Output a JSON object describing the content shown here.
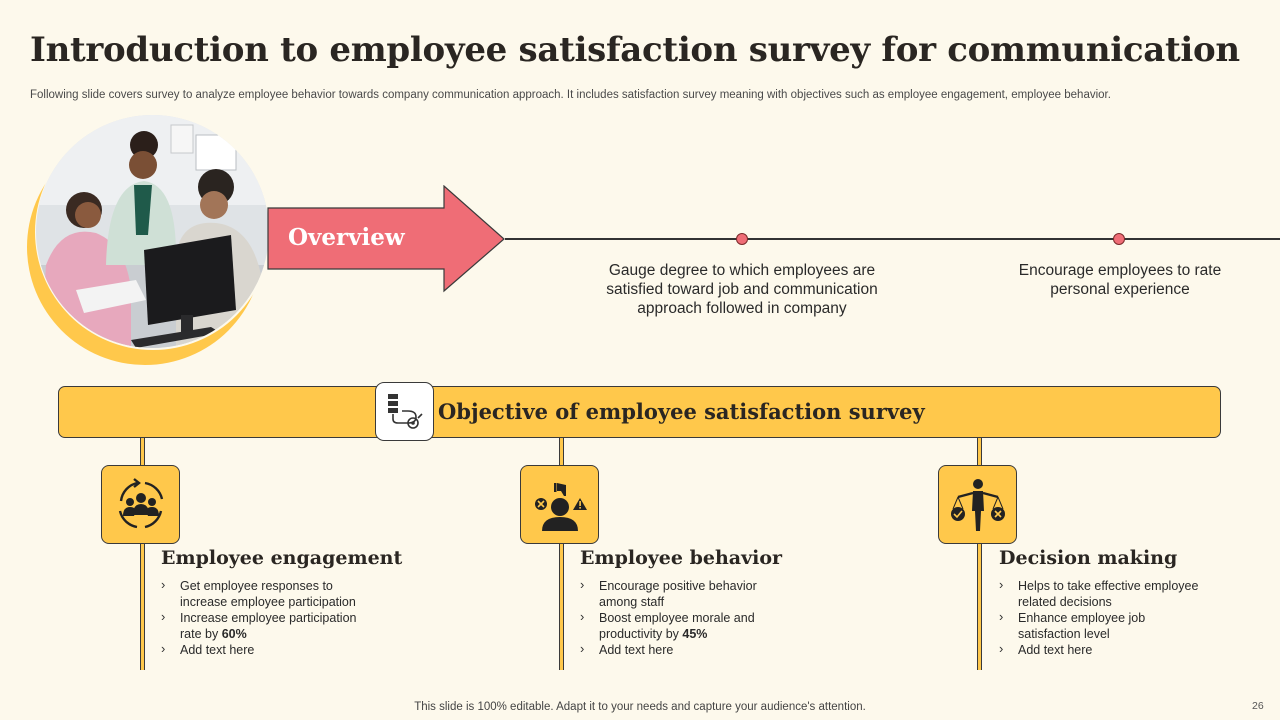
{
  "header": {
    "title": "Introduction to employee satisfaction survey for communication",
    "subtitle": "Following slide covers survey to analyze employee behavior towards company communication approach. It includes satisfaction survey meaning with objectives such as employee engagement, employee behavior."
  },
  "overview": {
    "label": "Overview",
    "points": [
      "Gauge degree to which employees are satisfied toward job and communication approach followed in company",
      "Encourage employees to rate personal experience"
    ]
  },
  "objective": {
    "title": "Objective of employee satisfaction survey",
    "icon": "survey-checklist-icon",
    "columns": [
      {
        "title": "Employee engagement",
        "icon": "team-cycle-icon",
        "bullets": [
          {
            "text": "Get employee responses to increase employee participation",
            "bold": ""
          },
          {
            "text": "Increase employee participation rate by ",
            "bold": "60%"
          },
          {
            "text": "Add text here",
            "bold": ""
          }
        ]
      },
      {
        "title": "Employee behavior",
        "icon": "feedback-behavior-icon",
        "bullets": [
          {
            "text": "Encourage positive behavior among staff",
            "bold": ""
          },
          {
            "text": "Boost employee morale and productivity by ",
            "bold": "45%"
          },
          {
            "text": "Add text here",
            "bold": ""
          }
        ]
      },
      {
        "title": "Decision making",
        "icon": "decision-balance-icon",
        "bullets": [
          {
            "text": "Helps to take effective employee related decisions",
            "bold": ""
          },
          {
            "text": "Enhance employee job satisfaction level",
            "bold": ""
          },
          {
            "text": "Add text here",
            "bold": ""
          }
        ]
      }
    ]
  },
  "footer": {
    "note": "This slide is 100% editable. Adapt it to your needs and capture your audience's attention.",
    "page": "26"
  },
  "colors": {
    "background": "#fdf9ec",
    "accent_yellow": "#ffc84b",
    "accent_red": "#ef6d76"
  }
}
